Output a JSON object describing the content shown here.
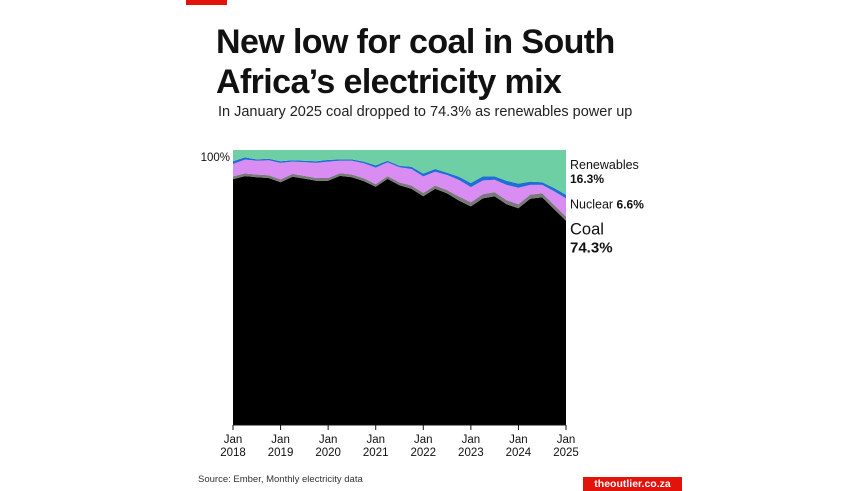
{
  "header": {
    "title": "New low for coal in South Africa’s electricity mix",
    "subtitle": "In January 2025 coal dropped to 74.3% as renewables power up"
  },
  "footer": {
    "source": "Source: Ember, Monthly electricity data",
    "brand": "theoutlier.co.za"
  },
  "colors": {
    "accent": "#e3120b",
    "coal": "#000000",
    "other": "#7a7a7a",
    "nuclear": "#d98cf2",
    "hydro": "#1f6ed4",
    "renewables": "#6fcfa4"
  },
  "chart_data": {
    "type": "area",
    "stacked": true,
    "x_range": [
      "2018-01",
      "2025-01"
    ],
    "y_range": [
      0,
      100
    ],
    "y_tick_labels": [
      "100%"
    ],
    "x_tick_labels": [
      {
        "month": "Jan",
        "year": "2018",
        "date": "2018-01"
      },
      {
        "month": "Jan",
        "year": "2019",
        "date": "2019-01"
      },
      {
        "month": "Jan",
        "year": "2020",
        "date": "2020-01"
      },
      {
        "month": "Jan",
        "year": "2021",
        "date": "2021-01"
      },
      {
        "month": "Jan",
        "year": "2022",
        "date": "2022-01"
      },
      {
        "month": "Jan",
        "year": "2023",
        "date": "2023-01"
      },
      {
        "month": "Jan",
        "year": "2024",
        "date": "2024-01"
      },
      {
        "month": "Jan",
        "year": "2025",
        "date": "2025-01"
      }
    ],
    "dates": [
      "2018-01",
      "2018-04",
      "2018-07",
      "2018-10",
      "2019-01",
      "2019-04",
      "2019-07",
      "2019-10",
      "2020-01",
      "2020-04",
      "2020-07",
      "2020-10",
      "2021-01",
      "2021-04",
      "2021-07",
      "2021-10",
      "2022-01",
      "2022-04",
      "2022-07",
      "2022-10",
      "2023-01",
      "2023-04",
      "2023-07",
      "2023-10",
      "2024-01",
      "2024-04",
      "2024-07",
      "2024-10",
      "2025-01"
    ],
    "series": [
      {
        "key": "coal",
        "values": [
          89.4,
          90.5,
          90.1,
          89.8,
          88.3,
          90.3,
          89.6,
          88.8,
          88.8,
          90.6,
          90.1,
          88.7,
          86.6,
          89.5,
          87.2,
          85.9,
          83.2,
          85.9,
          84.2,
          81.6,
          79.5,
          82.4,
          83.2,
          80.3,
          78.8,
          82.3,
          82.8,
          78.5,
          74.3
        ]
      },
      {
        "key": "other",
        "values": [
          1.0,
          1.0,
          1.0,
          1.0,
          1.0,
          1.0,
          1.0,
          1.0,
          1.0,
          1.0,
          1.0,
          1.0,
          1.0,
          1.0,
          1.0,
          1.2,
          1.2,
          1.2,
          1.2,
          1.5,
          1.5,
          1.5,
          1.5,
          1.5,
          1.5,
          1.5,
          1.5,
          1.5,
          1.5
        ]
      },
      {
        "key": "nuclear",
        "values": [
          4.5,
          5.0,
          5.0,
          5.5,
          6.0,
          4.5,
          5.0,
          5.5,
          6.0,
          4.5,
          5.0,
          5.5,
          6.0,
          5.0,
          5.5,
          6.0,
          6.0,
          5.0,
          5.5,
          6.0,
          5.5,
          5.0,
          4.5,
          5.5,
          6.0,
          3.5,
          3.0,
          5.0,
          6.6
        ]
      },
      {
        "key": "hydro",
        "values": [
          1.0,
          0.8,
          0.5,
          0.5,
          0.6,
          0.5,
          0.5,
          0.6,
          0.6,
          0.5,
          0.5,
          0.6,
          0.8,
          0.6,
          0.6,
          0.8,
          1.0,
          1.0,
          0.8,
          1.2,
          1.5,
          1.5,
          1.2,
          1.5,
          1.5,
          1.2,
          1.0,
          1.2,
          1.3
        ]
      },
      {
        "key": "renewables",
        "values": [
          4.1,
          2.7,
          3.4,
          3.2,
          4.1,
          3.7,
          3.9,
          4.1,
          3.6,
          3.4,
          3.4,
          4.2,
          5.6,
          3.9,
          5.7,
          6.1,
          8.6,
          6.9,
          8.3,
          9.7,
          12.0,
          9.6,
          9.6,
          11.2,
          12.2,
          11.5,
          11.7,
          13.8,
          16.3
        ]
      }
    ],
    "annotations": [
      {
        "key": "renewables",
        "label": "Renewables",
        "value": "16.3%"
      },
      {
        "key": "nuclear",
        "label": "Nuclear",
        "value": "6.6%"
      },
      {
        "key": "coal",
        "label": "Coal",
        "value": "74.3%"
      }
    ]
  }
}
